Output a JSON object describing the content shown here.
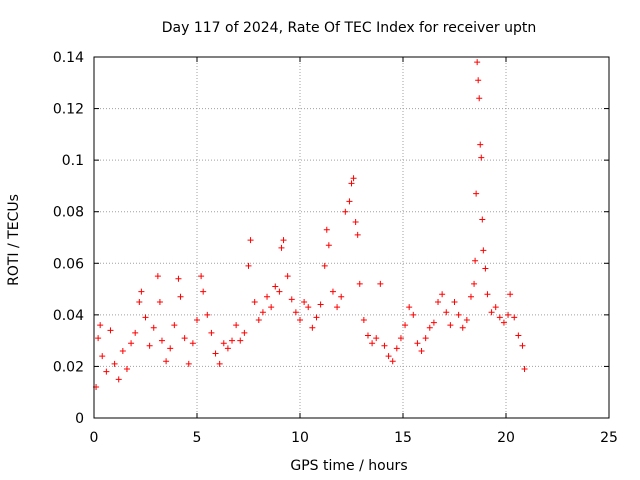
{
  "chart_data": {
    "type": "scatter",
    "title": "Day 117 of 2024, Rate Of TEC Index for receiver uptn",
    "xlabel": "GPS time / hours",
    "ylabel": "ROTI / TECUs",
    "xlim": [
      0,
      25
    ],
    "ylim": [
      0,
      0.14
    ],
    "xticks": [
      0,
      5,
      10,
      15,
      20,
      25
    ],
    "xtick_labels": [
      "0",
      "5",
      "10",
      "15",
      "20",
      "25"
    ],
    "yticks": [
      0,
      0.02,
      0.04,
      0.06,
      0.08,
      0.1,
      0.12,
      0.14
    ],
    "ytick_labels": [
      "0",
      "0.02",
      "0.04",
      "0.06",
      "0.08",
      "0.1",
      "0.12",
      "0.14"
    ],
    "grid": true,
    "legend": "none",
    "marker": "plus",
    "color": "#ff0000",
    "series": [
      {
        "name": "ROTI",
        "points": [
          [
            0.1,
            0.012
          ],
          [
            0.2,
            0.031
          ],
          [
            0.3,
            0.036
          ],
          [
            0.4,
            0.024
          ],
          [
            0.6,
            0.018
          ],
          [
            0.8,
            0.034
          ],
          [
            1.0,
            0.021
          ],
          [
            1.2,
            0.015
          ],
          [
            1.4,
            0.026
          ],
          [
            1.6,
            0.019
          ],
          [
            1.8,
            0.029
          ],
          [
            2.0,
            0.033
          ],
          [
            2.2,
            0.045
          ],
          [
            2.3,
            0.049
          ],
          [
            2.5,
            0.039
          ],
          [
            2.7,
            0.028
          ],
          [
            2.9,
            0.035
          ],
          [
            3.1,
            0.055
          ],
          [
            3.2,
            0.045
          ],
          [
            3.3,
            0.03
          ],
          [
            3.5,
            0.022
          ],
          [
            3.7,
            0.027
          ],
          [
            3.9,
            0.036
          ],
          [
            4.1,
            0.054
          ],
          [
            4.2,
            0.047
          ],
          [
            4.4,
            0.031
          ],
          [
            4.6,
            0.021
          ],
          [
            4.8,
            0.029
          ],
          [
            5.0,
            0.038
          ],
          [
            5.2,
            0.055
          ],
          [
            5.3,
            0.049
          ],
          [
            5.5,
            0.04
          ],
          [
            5.7,
            0.033
          ],
          [
            5.9,
            0.025
          ],
          [
            6.1,
            0.021
          ],
          [
            6.3,
            0.029
          ],
          [
            6.5,
            0.027
          ],
          [
            6.7,
            0.03
          ],
          [
            6.9,
            0.036
          ],
          [
            7.1,
            0.03
          ],
          [
            7.3,
            0.033
          ],
          [
            7.5,
            0.059
          ],
          [
            7.6,
            0.069
          ],
          [
            7.8,
            0.045
          ],
          [
            8.0,
            0.038
          ],
          [
            8.2,
            0.041
          ],
          [
            8.4,
            0.047
          ],
          [
            8.6,
            0.043
          ],
          [
            8.8,
            0.051
          ],
          [
            9.0,
            0.049
          ],
          [
            9.1,
            0.066
          ],
          [
            9.2,
            0.069
          ],
          [
            9.4,
            0.055
          ],
          [
            9.6,
            0.046
          ],
          [
            9.8,
            0.041
          ],
          [
            10.0,
            0.038
          ],
          [
            10.2,
            0.045
          ],
          [
            10.4,
            0.043
          ],
          [
            10.6,
            0.035
          ],
          [
            10.8,
            0.039
          ],
          [
            11.0,
            0.044
          ],
          [
            11.2,
            0.059
          ],
          [
            11.3,
            0.073
          ],
          [
            11.4,
            0.067
          ],
          [
            11.6,
            0.049
          ],
          [
            11.8,
            0.043
          ],
          [
            12.0,
            0.047
          ],
          [
            12.2,
            0.08
          ],
          [
            12.4,
            0.084
          ],
          [
            12.5,
            0.091
          ],
          [
            12.6,
            0.093
          ],
          [
            12.7,
            0.076
          ],
          [
            12.8,
            0.071
          ],
          [
            12.9,
            0.052
          ],
          [
            13.1,
            0.038
          ],
          [
            13.3,
            0.032
          ],
          [
            13.5,
            0.029
          ],
          [
            13.7,
            0.031
          ],
          [
            13.9,
            0.052
          ],
          [
            14.1,
            0.028
          ],
          [
            14.3,
            0.024
          ],
          [
            14.5,
            0.022
          ],
          [
            14.7,
            0.027
          ],
          [
            14.9,
            0.031
          ],
          [
            15.1,
            0.036
          ],
          [
            15.3,
            0.043
          ],
          [
            15.5,
            0.04
          ],
          [
            15.7,
            0.029
          ],
          [
            15.9,
            0.026
          ],
          [
            16.1,
            0.031
          ],
          [
            16.3,
            0.035
          ],
          [
            16.5,
            0.037
          ],
          [
            16.7,
            0.045
          ],
          [
            16.9,
            0.048
          ],
          [
            17.1,
            0.041
          ],
          [
            17.3,
            0.036
          ],
          [
            17.5,
            0.045
          ],
          [
            17.7,
            0.04
          ],
          [
            17.9,
            0.035
          ],
          [
            18.1,
            0.038
          ],
          [
            18.3,
            0.047
          ],
          [
            18.45,
            0.052
          ],
          [
            18.5,
            0.061
          ],
          [
            18.55,
            0.087
          ],
          [
            18.6,
            0.138
          ],
          [
            18.65,
            0.131
          ],
          [
            18.7,
            0.124
          ],
          [
            18.75,
            0.106
          ],
          [
            18.8,
            0.101
          ],
          [
            18.85,
            0.077
          ],
          [
            18.9,
            0.065
          ],
          [
            19.0,
            0.058
          ],
          [
            19.1,
            0.048
          ],
          [
            19.3,
            0.041
          ],
          [
            19.5,
            0.043
          ],
          [
            19.7,
            0.039
          ],
          [
            19.9,
            0.037
          ],
          [
            20.1,
            0.04
          ],
          [
            20.2,
            0.048
          ],
          [
            20.4,
            0.039
          ],
          [
            20.6,
            0.032
          ],
          [
            20.8,
            0.028
          ],
          [
            20.9,
            0.019
          ]
        ]
      }
    ]
  }
}
